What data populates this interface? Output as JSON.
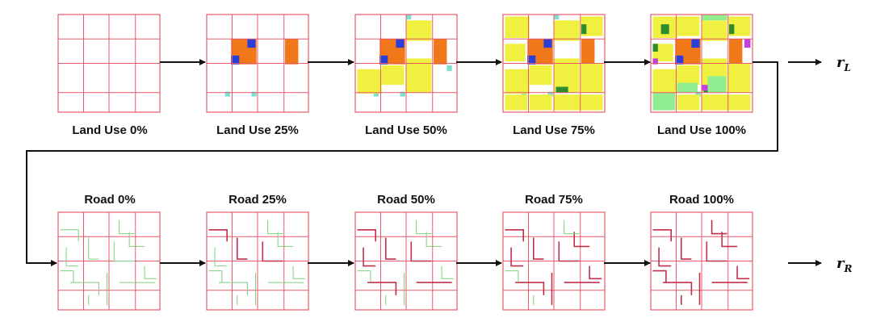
{
  "diagram": {
    "land_use_stages": [
      {
        "label": "Land Use 0%"
      },
      {
        "label": "Land Use 25%"
      },
      {
        "label": "Land Use 50%"
      },
      {
        "label": "Land Use 75%"
      },
      {
        "label": "Land Use 100%"
      }
    ],
    "road_stages": [
      {
        "label": "Road 0%"
      },
      {
        "label": "Road 25%"
      },
      {
        "label": "Road 50%"
      },
      {
        "label": "Road 75%"
      },
      {
        "label": "Road 100%"
      }
    ],
    "outputs": {
      "land_use": {
        "symbol": "r",
        "subscript": "L"
      },
      "road": {
        "symbol": "r",
        "subscript": "R"
      }
    },
    "colors": {
      "grid_line": "#e85a6a",
      "commercial": "#f07818",
      "residential": "#f0f040",
      "industrial": "#2a3fd8",
      "park": "#90ee90",
      "forest": "#2e8b2e",
      "water": "#7fe0d0",
      "mixed": "#c040e0",
      "new_road": "#7ed07e",
      "built_road": "#c0304a",
      "arrow": "#111111"
    }
  }
}
